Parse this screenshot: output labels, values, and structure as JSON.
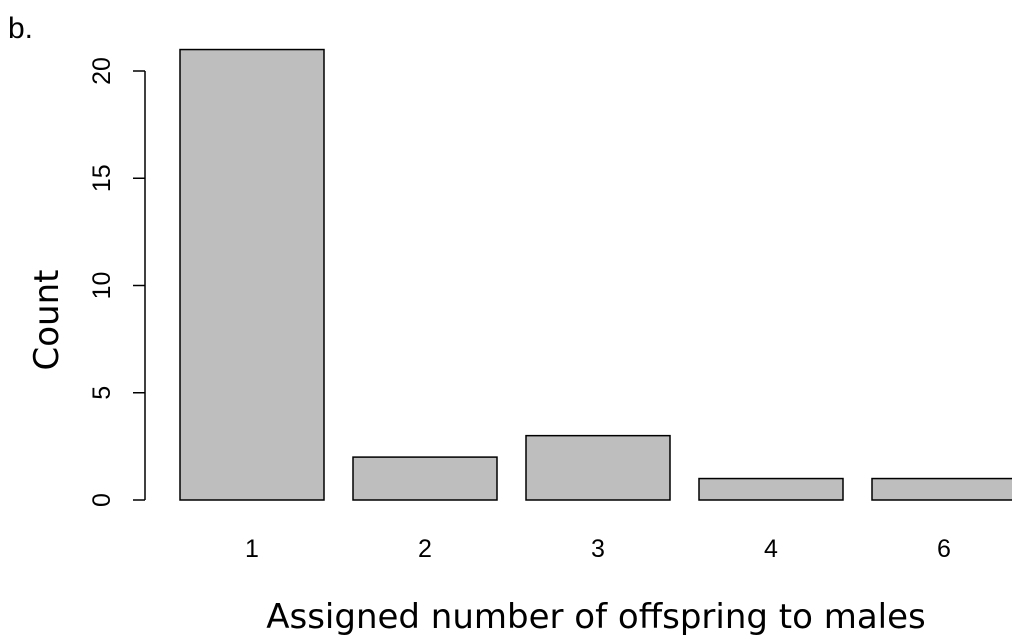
{
  "panel_label": "b.",
  "chart_data": {
    "type": "bar",
    "categories": [
      "1",
      "2",
      "3",
      "4",
      "6"
    ],
    "values": [
      21,
      2,
      3,
      1,
      1
    ],
    "xlabel": "Assigned number of offspring to males",
    "ylabel": "Count",
    "ylim": [
      0,
      21
    ],
    "yticks": [
      0,
      5,
      10,
      15,
      20
    ],
    "bar_color": "#bebebe",
    "grid": false
  }
}
